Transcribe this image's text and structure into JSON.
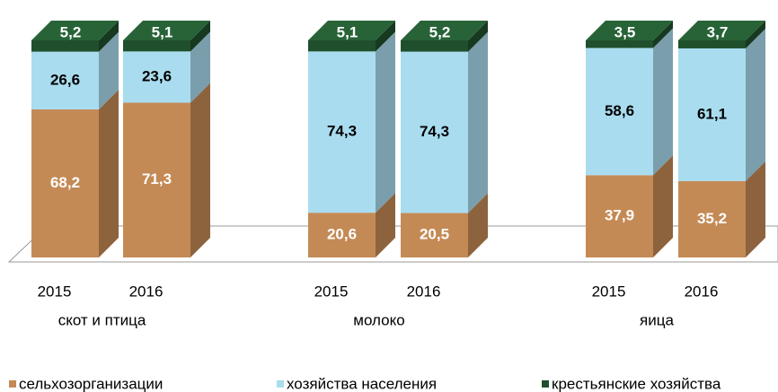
{
  "chart_data": {
    "type": "stacked-bar-3d",
    "categories": [
      "2015",
      "2016",
      "2015",
      "2016",
      "2015",
      "2016"
    ],
    "groups": [
      "скот и птица",
      "молоко",
      "яица"
    ],
    "series": [
      {
        "name": "сельхозорганизации",
        "color": "#c48a55",
        "values": [
          68.2,
          71.3,
          20.6,
          20.5,
          37.9,
          35.2
        ],
        "value_labels": [
          "68,2",
          "71,3",
          "20,6",
          "20,5",
          "37,9",
          "35,2"
        ]
      },
      {
        "name": "хозяйства населения",
        "color": "#a9dcef",
        "values": [
          26.6,
          23.6,
          74.3,
          74.3,
          58.6,
          61.1
        ],
        "value_labels": [
          "26,6",
          "23,6",
          "74,3",
          "74,3",
          "58,6",
          "61,1"
        ]
      },
      {
        "name": "крестьянские хозяйства",
        "color": "#1f4f2c",
        "values": [
          5.2,
          5.1,
          5.1,
          5.2,
          3.5,
          3.7
        ],
        "value_labels": [
          "5,2",
          "5,1",
          "5,1",
          "5,2",
          "3,5",
          "3,7"
        ]
      }
    ]
  }
}
